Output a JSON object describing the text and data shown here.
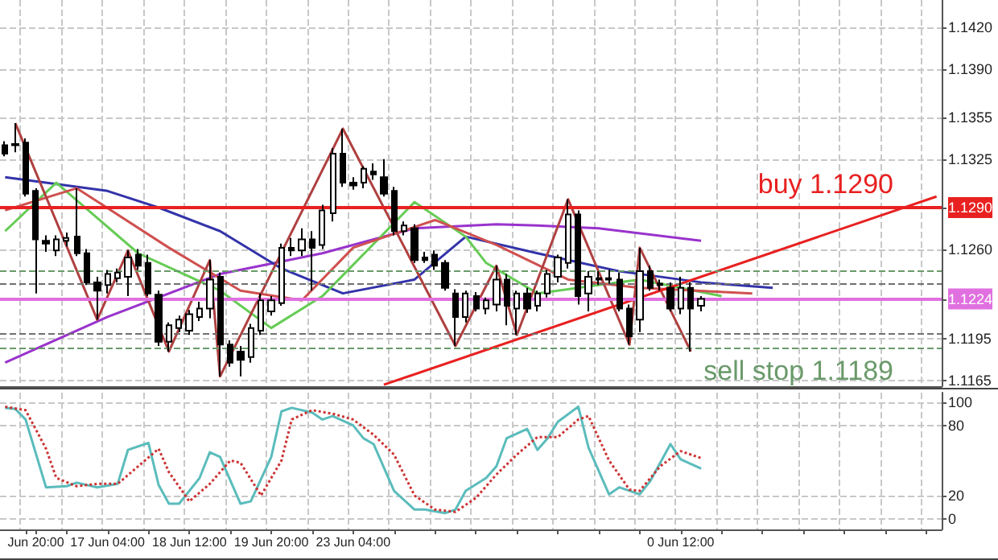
{
  "chart_data": [
    {
      "type": "candlestick",
      "ylim": [
        1.1161,
        1.144
      ],
      "tick_labels": "y",
      "grid": true,
      "marker": "none",
      "categories": [
        null,
        null,
        null,
        null,
        null,
        null,
        null,
        null,
        null,
        null,
        null,
        null,
        null,
        null,
        null,
        null,
        null,
        null,
        null,
        null,
        null,
        null,
        null,
        null,
        null,
        null,
        null,
        null,
        null,
        null,
        null,
        null,
        null,
        null,
        null,
        null,
        null,
        null,
        null,
        null,
        null,
        null,
        null,
        null,
        null,
        null,
        null,
        null,
        null,
        null,
        null,
        null,
        null,
        null,
        null,
        null,
        null,
        null,
        null,
        null,
        null,
        null,
        null,
        null,
        null,
        null,
        null,
        null,
        null,
        null,
        null,
        null,
        null,
        null,
        null,
        null,
        null,
        null,
        null,
        null,
        null,
        null,
        null,
        null,
        null,
        null,
        null,
        null,
        null,
        null,
        null,
        null
      ],
      "yticks": [
        1.1165,
        1.1195,
        1.1224,
        {
          "value": 1.126,
          "label": "1.1260"
        },
        {
          "value": 1.129,
          "label": "1.1290"
        },
        1.1325,
        1.1355,
        {
          "value": 1.139,
          "label": "1.1390"
        },
        {
          "value": 1.142,
          "label": "1.1420"
        }
      ],
      "ref_lines": [
        {
          "axis": "y",
          "value": 1.129,
          "label": "buy 1.1290",
          "color": "#e82020",
          "line_style": "solid"
        },
        {
          "axis": "y",
          "value": 1.1224,
          "color": "#e070e0",
          "line_style": "solid"
        },
        {
          "axis": "y",
          "value": 1.1244,
          "color": "#6a9a6a",
          "line_style": "dashed"
        },
        {
          "axis": "y",
          "value": 1.1235,
          "color": "#707070",
          "line_style": "dashed"
        },
        {
          "axis": "y",
          "value": 1.1199,
          "color": "#707070",
          "line_style": "dashed"
        },
        {
          "axis": "y",
          "value": 1.1189,
          "label": "sell stop 1.1189",
          "color": "#6a9a6a",
          "line_style": "dashed"
        }
      ],
      "series": [
        {
          "color": "#000000",
          "ohlc": [
            [
              1.1335,
              1.1338,
              1.1327,
              1.1329
            ],
            [
              1.1335,
              1.1351,
              1.133,
              1.1336
            ],
            [
              1.1337,
              1.134,
              1.1298,
              1.13
            ],
            [
              1.1302,
              1.1304,
              1.1228,
              1.1267
            ],
            [
              1.1266,
              1.127,
              1.1258,
              1.1264
            ],
            [
              1.1259,
              1.127,
              1.1255,
              1.1267
            ],
            [
              1.1266,
              1.1272,
              1.1262,
              1.1268
            ],
            [
              1.1269,
              1.1304,
              1.1255,
              1.1257
            ],
            [
              1.1257,
              1.126,
              1.1234,
              1.1236
            ],
            [
              1.1236,
              1.124,
              1.1209,
              1.123
            ],
            [
              1.1234,
              1.1245,
              1.1228,
              1.1242
            ],
            [
              1.1239,
              1.1246,
              1.1236,
              1.1243
            ],
            [
              1.124,
              1.1259,
              1.1226,
              1.1254
            ],
            [
              1.1256,
              1.126,
              1.1245,
              1.1248
            ],
            [
              1.125,
              1.1256,
              1.1226,
              1.1228
            ],
            [
              1.1227,
              1.123,
              1.119,
              1.1193
            ],
            [
              1.1193,
              1.1207,
              1.1186,
              1.1205
            ],
            [
              1.1203,
              1.1212,
              1.12,
              1.1209
            ],
            [
              1.1201,
              1.1216,
              1.1198,
              1.1213
            ],
            [
              1.1211,
              1.1222,
              1.1208,
              1.1217
            ],
            [
              1.1217,
              1.1252,
              1.121,
              1.1238
            ],
            [
              1.124,
              1.1243,
              1.1168,
              1.1191
            ],
            [
              1.1191,
              1.1194,
              1.1175,
              1.1178
            ],
            [
              1.1186,
              1.119,
              1.1168,
              1.118
            ],
            [
              1.1182,
              1.1206,
              1.1178,
              1.1203
            ],
            [
              1.1201,
              1.1228,
              1.1198,
              1.1223
            ],
            [
              1.1215,
              1.1226,
              1.1212,
              1.1223
            ],
            [
              1.1221,
              1.1264,
              1.1219,
              1.1261
            ],
            [
              1.1261,
              1.1268,
              1.1255,
              1.1259
            ],
            [
              1.1259,
              1.1275,
              1.1255,
              1.1267
            ],
            [
              1.1267,
              1.1273,
              1.123,
              1.1261
            ],
            [
              1.1263,
              1.1292,
              1.126,
              1.1288
            ],
            [
              1.1286,
              1.1333,
              1.128,
              1.1329
            ],
            [
              1.1329,
              1.1347,
              1.1305,
              1.1308
            ],
            [
              1.1308,
              1.1312,
              1.1303,
              1.1306
            ],
            [
              1.1308,
              1.132,
              1.1304,
              1.1318
            ],
            [
              1.1316,
              1.1322,
              1.131,
              1.1314
            ],
            [
              1.1312,
              1.1325,
              1.1298,
              1.13
            ],
            [
              1.1302,
              1.1305,
              1.127,
              1.1273
            ],
            [
              1.1273,
              1.128,
              1.127,
              1.1277
            ],
            [
              1.1275,
              1.1278,
              1.125,
              1.1252
            ],
            [
              1.1254,
              1.1258,
              1.125,
              1.1252
            ],
            [
              1.1256,
              1.1259,
              1.1245,
              1.1248
            ],
            [
              1.125,
              1.1252,
              1.123,
              1.1232
            ],
            [
              1.1228,
              1.1231,
              1.119,
              1.1211
            ],
            [
              1.1211,
              1.123,
              1.1207,
              1.1228
            ],
            [
              1.1226,
              1.1229,
              1.1215,
              1.1217
            ],
            [
              1.1217,
              1.1225,
              1.1213,
              1.1223
            ],
            [
              1.122,
              1.1248,
              1.1215,
              1.1238
            ],
            [
              1.1238,
              1.1242,
              1.1205,
              1.1219
            ],
            [
              1.1217,
              1.123,
              1.1198,
              1.1228
            ],
            [
              1.1228,
              1.1232,
              1.1214,
              1.1217
            ],
            [
              1.1219,
              1.123,
              1.1215,
              1.1228
            ],
            [
              1.1228,
              1.1245,
              1.1225,
              1.1242
            ],
            [
              1.124,
              1.1256,
              1.1236,
              1.1254
            ],
            [
              1.125,
              1.1296,
              1.1246,
              1.1285
            ],
            [
              1.1285,
              1.1288,
              1.122,
              1.1226
            ],
            [
              1.1228,
              1.1244,
              1.1215,
              1.124
            ],
            [
              1.1238,
              1.1244,
              1.1234,
              1.1239
            ],
            [
              1.1239,
              1.1245,
              1.1235,
              1.1238
            ],
            [
              1.1238,
              1.1243,
              1.1215,
              1.1217
            ],
            [
              1.1217,
              1.122,
              1.1191,
              1.1197
            ],
            [
              1.1209,
              1.1261,
              1.12,
              1.1244
            ],
            [
              1.1244,
              1.1248,
              1.123,
              1.1232
            ],
            [
              1.1234,
              1.1238,
              1.123,
              1.1235
            ],
            [
              1.1232,
              1.1236,
              1.1215,
              1.1217
            ],
            [
              1.1217,
              1.124,
              1.1213,
              1.1232
            ],
            [
              1.1232,
              1.1236,
              1.1186,
              1.1217
            ],
            [
              1.1219,
              1.1226,
              1.1215,
              1.1224
            ],
            null,
            null,
            null,
            null,
            null,
            null,
            null,
            null,
            null,
            null,
            null,
            null,
            null,
            null,
            null,
            null,
            null,
            null,
            null,
            null,
            null,
            null,
            null
          ]
        },
        {
          "type": "line",
          "color": "#9933cc",
          "values": [
            1.1178,
            null,
            null,
            null,
            null,
            null,
            null,
            null,
            null,
            null,
            1.1211,
            null,
            null,
            null,
            null,
            null,
            null,
            null,
            null,
            null,
            null,
            1.1242,
            null,
            null,
            null,
            null,
            null,
            null,
            null,
            null,
            null,
            1.1257,
            null,
            null,
            null,
            null,
            null,
            null,
            null,
            null,
            1.1275,
            null,
            null,
            null,
            null,
            null,
            null,
            null,
            1.1278,
            null,
            null,
            null,
            1.1277,
            null,
            null,
            null,
            null,
            null,
            1.1275,
            null,
            null,
            null,
            null,
            null,
            null,
            null,
            null,
            null,
            1.1266,
            null,
            null,
            null,
            null,
            null,
            null,
            null,
            null,
            null,
            null,
            null,
            null,
            null,
            null,
            null,
            null,
            null,
            null,
            null,
            null,
            null,
            null,
            null
          ]
        },
        {
          "type": "line",
          "color": "#3333aa",
          "values": [
            1.1312,
            null,
            null,
            null,
            null,
            null,
            null,
            null,
            null,
            null,
            1.1302,
            null,
            null,
            null,
            null,
            1.129,
            null,
            null,
            null,
            null,
            null,
            1.1273,
            null,
            null,
            null,
            null,
            null,
            1.1246,
            null,
            null,
            null,
            null,
            null,
            1.1228,
            null,
            null,
            null,
            null,
            null,
            null,
            1.1238,
            null,
            null,
            null,
            null,
            1.1269,
            null,
            null,
            null,
            null,
            null,
            null,
            1.1257,
            null,
            null,
            null,
            null,
            null,
            null,
            null,
            1.1244,
            null,
            null,
            null,
            null,
            null,
            null,
            null,
            1.1236,
            null,
            null,
            null,
            null,
            null,
            null,
            1.1232,
            null,
            null,
            null,
            null,
            null,
            null,
            null,
            null,
            null,
            null,
            null,
            null,
            null,
            null,
            null,
            null
          ]
        },
        {
          "type": "line",
          "color": "#66cc55",
          "values": [
            1.1273,
            null,
            null,
            null,
            null,
            1.1308,
            null,
            null,
            null,
            null,
            null,
            null,
            null,
            1.1257,
            null,
            null,
            null,
            null,
            null,
            null,
            null,
            1.123,
            null,
            null,
            null,
            null,
            1.1203,
            null,
            null,
            null,
            null,
            1.1226,
            null,
            null,
            null,
            null,
            null,
            null,
            null,
            null,
            1.1294,
            null,
            null,
            null,
            null,
            1.1269,
            null,
            1.125,
            null,
            null,
            null,
            null,
            1.1228,
            null,
            null,
            null,
            null,
            null,
            null,
            null,
            null,
            null,
            1.1238,
            null,
            null,
            null,
            null,
            null,
            null,
            null,
            1.1226,
            null,
            null,
            null,
            null,
            null,
            null,
            null,
            null,
            null,
            null,
            null,
            null,
            null,
            null,
            null,
            null,
            null,
            null,
            null,
            null,
            null
          ]
        },
        {
          "type": "line",
          "color": "#d05050",
          "values": [
            1.1288,
            null,
            null,
            null,
            null,
            null,
            null,
            1.1304,
            null,
            null,
            null,
            null,
            null,
            null,
            null,
            null,
            1.1261,
            null,
            null,
            null,
            null,
            null,
            null,
            1.123,
            null,
            null,
            null,
            null,
            null,
            1.1223,
            null,
            null,
            null,
            null,
            1.1261,
            null,
            null,
            null,
            null,
            null,
            null,
            null,
            1.1281,
            null,
            null,
            null,
            null,
            null,
            1.1263,
            null,
            null,
            null,
            null,
            null,
            null,
            1.1238,
            null,
            null,
            null,
            null,
            null,
            null,
            1.1232,
            null,
            null,
            null,
            null,
            null,
            null,
            null,
            null,
            null,
            null,
            1.1228,
            null,
            null,
            null,
            null,
            null,
            null,
            null,
            null,
            null,
            null,
            null,
            null,
            null,
            null,
            null,
            null,
            null,
            null
          ]
        },
        {
          "type": "line",
          "color": "#b04040",
          "values": [
            null,
            1.1351,
            null,
            null,
            null,
            null,
            null,
            null,
            null,
            1.1209,
            null,
            null,
            1.1259,
            null,
            null,
            null,
            1.1186,
            null,
            null,
            null,
            1.1252,
            1.1168,
            null,
            null,
            null,
            null,
            null,
            null,
            null,
            null,
            null,
            null,
            null,
            1.1347,
            null,
            null,
            null,
            null,
            null,
            null,
            null,
            null,
            null,
            null,
            1.119,
            null,
            null,
            null,
            1.1248,
            null,
            1.1198,
            null,
            null,
            null,
            null,
            1.1296,
            null,
            null,
            null,
            null,
            null,
            1.1191,
            1.1261,
            null,
            null,
            null,
            null,
            1.1186,
            null,
            null,
            null,
            null,
            null,
            null,
            null,
            null,
            null,
            null,
            null,
            null,
            null,
            null,
            null,
            null,
            null,
            null,
            null,
            null,
            null,
            null,
            null,
            null
          ]
        },
        {
          "type": "line",
          "color": "#e82020",
          "values": [
            null,
            null,
            null,
            null,
            null,
            null,
            null,
            null,
            null,
            null,
            null,
            null,
            null,
            null,
            null,
            null,
            null,
            null,
            null,
            null,
            null,
            null,
            null,
            null,
            null,
            null,
            null,
            null,
            null,
            null,
            null,
            null,
            null,
            null,
            null,
            null,
            null,
            1.1162,
            null,
            null,
            null,
            null,
            null,
            null,
            null,
            null,
            null,
            null,
            null,
            null,
            null,
            null,
            null,
            null,
            null,
            null,
            null,
            null,
            null,
            null,
            null,
            null,
            null,
            null,
            null,
            null,
            null,
            null,
            null,
            null,
            null,
            null,
            null,
            null,
            null,
            null,
            null,
            null,
            null,
            null,
            null,
            null,
            null,
            null,
            null,
            null,
            null,
            null,
            null,
            null,
            null,
            1.1298
          ]
        }
      ]
    },
    {
      "type": "line",
      "ylim": [
        -9,
        108
      ],
      "yticks": [
        0,
        20,
        80,
        100
      ],
      "grid": true,
      "marker": "none",
      "categories": [
        null,
        null,
        null,
        "Jun 20:00",
        null,
        null,
        null,
        null,
        null,
        null,
        "17 Jun 04:00",
        null,
        null,
        null,
        null,
        null,
        null,
        null,
        "18 Jun 12:00",
        null,
        null,
        null,
        null,
        null,
        null,
        null,
        "19 Jun 20:00",
        null,
        null,
        null,
        null,
        null,
        null,
        null,
        "23 Jun 04:00",
        null,
        null,
        null,
        null,
        null,
        null,
        null,
        null,
        null,
        null,
        null,
        null,
        null,
        null,
        null,
        null,
        null,
        null,
        null,
        null,
        null,
        null,
        null,
        null,
        null,
        null,
        null,
        null,
        null,
        null,
        null,
        "0 Jun 12:00",
        null,
        null,
        null,
        null,
        null,
        null,
        null,
        null,
        null,
        null,
        null,
        null,
        null,
        null,
        null,
        null,
        null,
        null,
        null,
        null,
        null,
        null,
        null,
        null,
        null
      ],
      "series": [
        {
          "color": "#5bbcbc",
          "line_style": "solid",
          "values": [
            95,
            94,
            85,
            null,
            27,
            null,
            28,
            31,
            null,
            27,
            null,
            30,
            59,
            null,
            65,
            29,
            13,
            13,
            null,
            35,
            57,
            53,
            null,
            13,
            15,
            null,
            53,
            92,
            95,
            null,
            91,
            85,
            88,
            null,
            80,
            69,
            64,
            null,
            24,
            null,
            8,
            8,
            null,
            5,
            8,
            24,
            null,
            35,
            45,
            69,
            null,
            77,
            59,
            69,
            83,
            null,
            96,
            61,
            null,
            21,
            27,
            null,
            21,
            32,
            null,
            64,
            51,
            null,
            43,
            null,
            null,
            null,
            null,
            null,
            null,
            null,
            null,
            null,
            null,
            null,
            null,
            null,
            null,
            null,
            null,
            null,
            null,
            null,
            null,
            null,
            null,
            null
          ]
        },
        {
          "color": "#cc3333",
          "line_style": "dotted",
          "values": [
            96,
            null,
            93,
            null,
            60,
            35,
            null,
            28,
            null,
            30,
            null,
            30,
            null,
            45,
            null,
            60,
            40,
            null,
            15,
            null,
            30,
            null,
            50,
            48,
            null,
            20,
            null,
            50,
            85,
            null,
            93,
            null,
            90,
            null,
            85,
            null,
            72,
            null,
            55,
            null,
            20,
            null,
            8,
            null,
            6,
            null,
            18,
            null,
            38,
            null,
            55,
            null,
            70,
            null,
            70,
            null,
            85,
            88,
            null,
            50,
            null,
            25,
            24,
            null,
            45,
            null,
            58,
            null,
            52,
            null,
            null,
            null,
            null,
            null,
            null,
            null,
            null,
            null,
            null,
            null,
            null,
            null,
            null,
            null,
            null,
            null,
            null,
            null,
            null,
            null,
            null,
            null
          ]
        }
      ]
    }
  ]
}
